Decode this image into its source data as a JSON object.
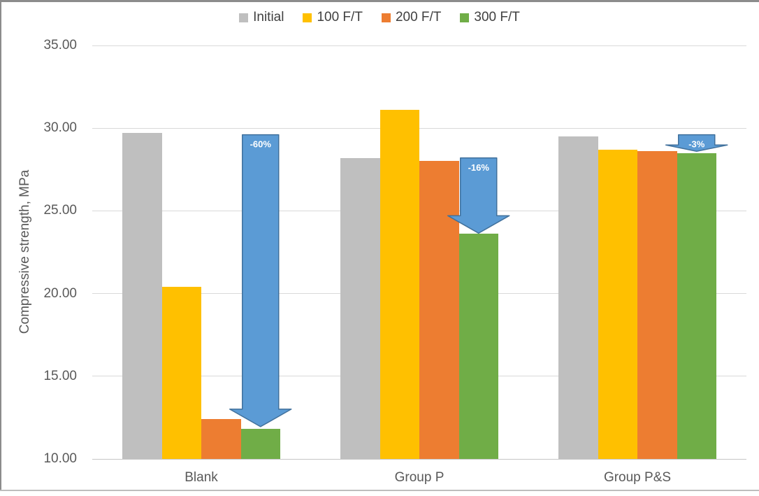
{
  "chart_data": {
    "type": "bar",
    "title": "",
    "categories": [
      "Blank",
      "Group P",
      "Group P&S"
    ],
    "series": [
      {
        "name": "Initial",
        "color": "#BFBFBF",
        "values": [
          29.7,
          28.2,
          29.5
        ]
      },
      {
        "name": "100 F/T",
        "color": "#FFC000",
        "values": [
          20.4,
          31.1,
          28.7
        ]
      },
      {
        "name": "200 F/T",
        "color": "#ED7D31",
        "values": [
          12.4,
          28.0,
          28.6
        ]
      },
      {
        "name": "300 F/T",
        "color": "#70AD47",
        "values": [
          11.8,
          23.6,
          28.5
        ]
      }
    ],
    "xlabel": "",
    "ylabel": "Compressive strength, MPa",
    "ylim": [
      10,
      35
    ],
    "ytick_step": 5,
    "ytick_labels": [
      "10.00",
      "15.00",
      "20.00",
      "25.00",
      "30.00",
      "35.00"
    ],
    "grid": true,
    "legend_position": "top",
    "annotations": [
      {
        "label": "-60%",
        "category": "Blank",
        "over_series": "300 F/T",
        "from_value": 29.6,
        "to_value": 11.95
      },
      {
        "label": "-16%",
        "category": "Group P",
        "over_series": "300 F/T",
        "from_value": 28.2,
        "to_value": 23.65
      },
      {
        "label": "-3%",
        "category": "Group P&S",
        "over_series": "300 F/T",
        "from_value": 29.6,
        "to_value": 28.6
      }
    ],
    "annotation_style": {
      "fill": "#5B9BD5",
      "border": "#41719C",
      "text_color": "#FFFFFF"
    }
  },
  "colors": {
    "background": "#FFFFFF",
    "gridline": "#D9D9D9",
    "axis_text": "#595959",
    "legend_text": "#404040",
    "frame_border": "#8C8C8C",
    "bottom_rule": "#BDBDBD"
  }
}
